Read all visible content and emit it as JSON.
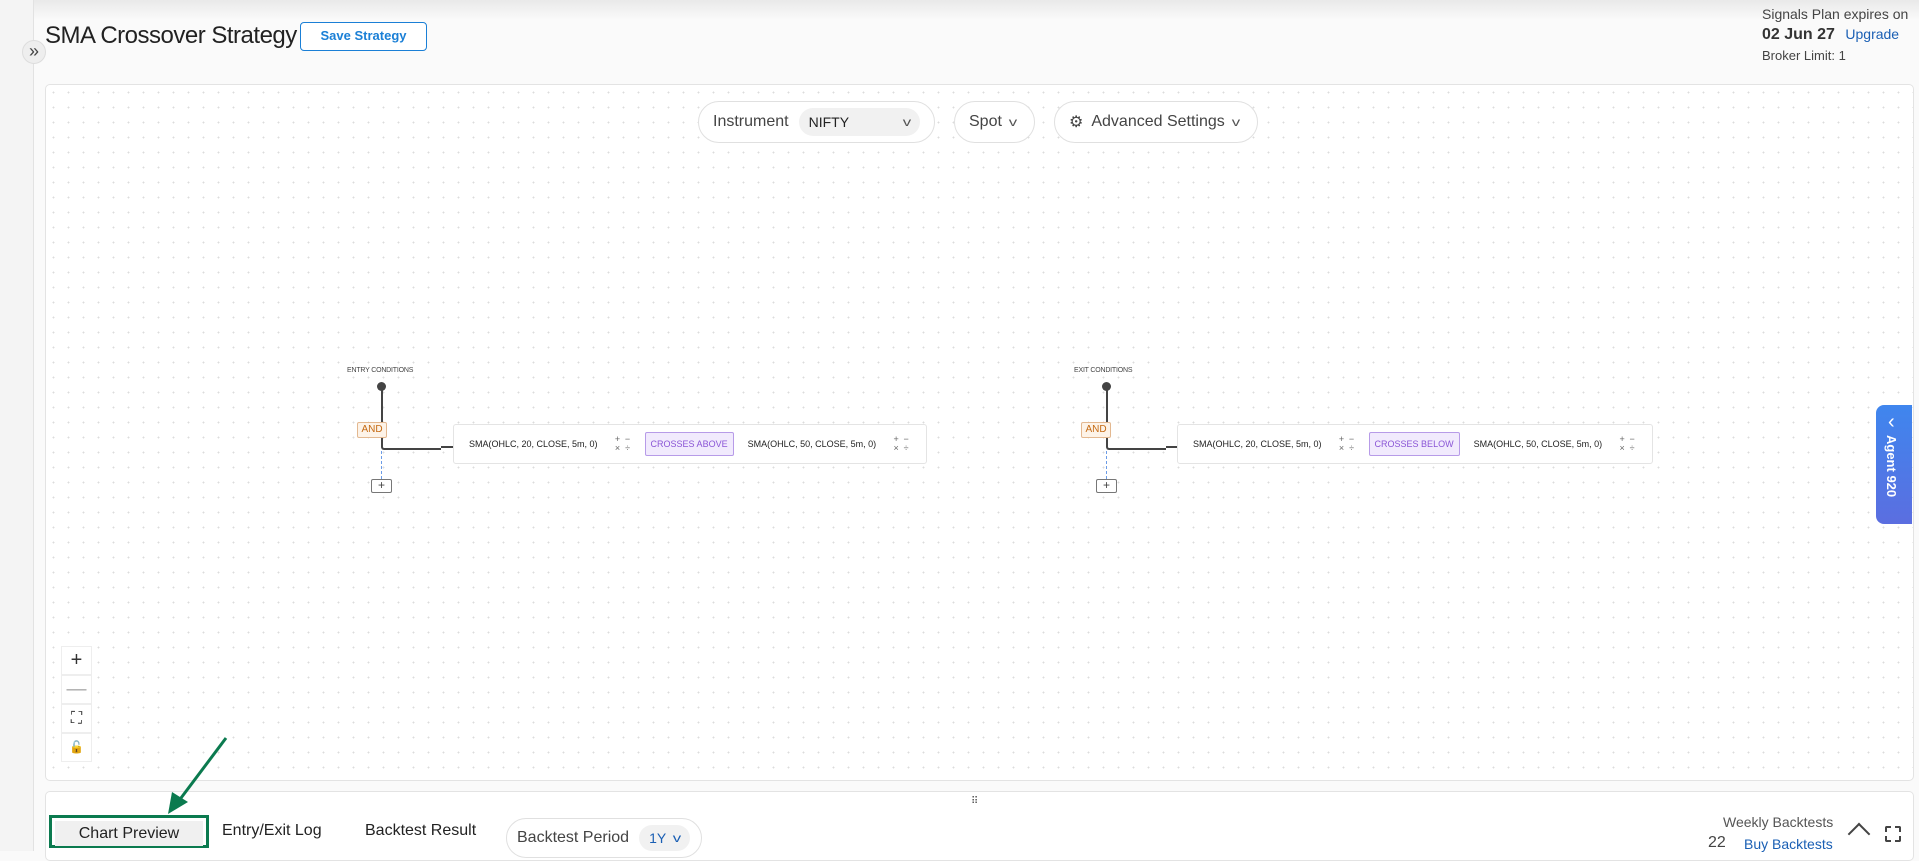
{
  "header": {
    "title": "SMA Crossover Strategy",
    "save_label": "Save Strategy",
    "plan_text": "Signals Plan expires on",
    "plan_date": "02 Jun 27",
    "upgrade_label": "Upgrade",
    "broker_limit": "Broker Limit: 1"
  },
  "toolbar": {
    "instrument_label": "Instrument",
    "instrument_value": "NIFTY",
    "spot_label": "Spot",
    "advanced_label": "Advanced Settings"
  },
  "entry": {
    "label": "ENTRY CONDITIONS",
    "operator": "AND",
    "left": "SMA(OHLC, 20, CLOSE, 5m, 0)",
    "comparator": "CROSSES ABOVE",
    "right": "SMA(OHLC, 50, CLOSE, 5m, 0)"
  },
  "exit": {
    "label": "EXIT CONDITIONS",
    "operator": "AND",
    "left": "SMA(OHLC, 20, CLOSE, 5m, 0)",
    "comparator": "CROSSES BELOW",
    "right": "SMA(OHLC, 50, CLOSE, 5m, 0)"
  },
  "ops": {
    "plus": "+",
    "minus": "−",
    "times": "×",
    "divide": "÷",
    "add": "+"
  },
  "zoom_controls": {
    "zoom_in": "+",
    "zoom_out": "—",
    "fit": "⛶",
    "lock": "🔓"
  },
  "agent": {
    "label": "Agent 920",
    "chevron": "‹"
  },
  "bottom": {
    "tabs": [
      "Chart Preview",
      "Entry/Exit Log",
      "Backtest Result"
    ],
    "period_label": "Backtest Period",
    "period_value": "1Y",
    "weekly_label": "Weekly Backtests",
    "weekly_count": "22",
    "buy_label": "Buy Backtests"
  },
  "colors": {
    "accent": "#1a7fd6",
    "highlight": "#0b7a4f",
    "comparator": "#8a55d6",
    "operator": "#c56a12"
  }
}
